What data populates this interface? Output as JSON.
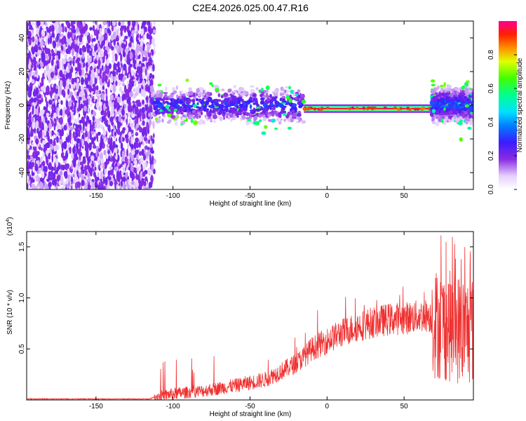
{
  "title": "C2E4.2026.025.00.47.R16",
  "chart_data": [
    {
      "type": "heatmap",
      "title": "C2E4.2026.025.00.47.R16",
      "xlabel": "Height of straight line (km)",
      "ylabel": "Frequency (Hz)",
      "xlim": [
        -195,
        95
      ],
      "ylim": [
        -50,
        50
      ],
      "xticks": [
        -150,
        -100,
        -50,
        0,
        50
      ],
      "yticks": [
        -40,
        -20,
        0,
        20,
        40
      ],
      "colorbar": {
        "label": "Normalized spectral amplitude",
        "range": [
          0,
          1
        ],
        "ticks": [
          0.0,
          0.2,
          0.4,
          0.6,
          0.8
        ]
      },
      "features": [
        {
          "name": "broadband noise",
          "x_range": [
            -195,
            -112
          ],
          "freq_range": [
            -50,
            50
          ],
          "amplitude": 0.1
        },
        {
          "name": "signal band",
          "x_range": [
            -112,
            -15
          ],
          "center_freq": 0,
          "half_width": 6,
          "amplitude": 0.3
        },
        {
          "name": "strong line",
          "x_range": [
            -15,
            68
          ],
          "center_freq": -2,
          "amplitude": 0.95
        },
        {
          "name": "signal band end",
          "x_range": [
            68,
            95
          ],
          "center_freq": 0,
          "half_width": 6,
          "amplitude": 0.35
        }
      ]
    },
    {
      "type": "line",
      "xlabel": "Height of straight line (km)",
      "ylabel": "SNR (10 * v/v)",
      "y_scale_label": "(x10",
      "y_scale_exp": "4",
      "y_scale_close": ")",
      "xlim": [
        -195,
        95
      ],
      "ylim": [
        0,
        1.65
      ],
      "xticks": [
        -150,
        -100,
        -50,
        0,
        50
      ],
      "yticks": [
        0.5,
        1.0,
        1.5
      ],
      "ytick_labels": [
        "0.5",
        "1.0",
        "1.5"
      ],
      "series": [
        {
          "name": "SNR",
          "color": "#ef3030",
          "x": [
            -195,
            -150,
            -115,
            -112,
            -100,
            -80,
            -60,
            -40,
            -30,
            -20,
            -15,
            -10,
            0,
            10,
            20,
            30,
            40,
            50,
            60,
            66,
            68,
            70,
            80,
            90,
            95
          ],
          "y": [
            0.01,
            0.01,
            0.01,
            0.03,
            0.06,
            0.09,
            0.14,
            0.2,
            0.28,
            0.36,
            0.42,
            0.5,
            0.58,
            0.66,
            0.72,
            0.76,
            0.79,
            0.8,
            0.82,
            0.83,
            0.8,
            0.75,
            0.72,
            0.68,
            0.7
          ]
        }
      ]
    }
  ]
}
